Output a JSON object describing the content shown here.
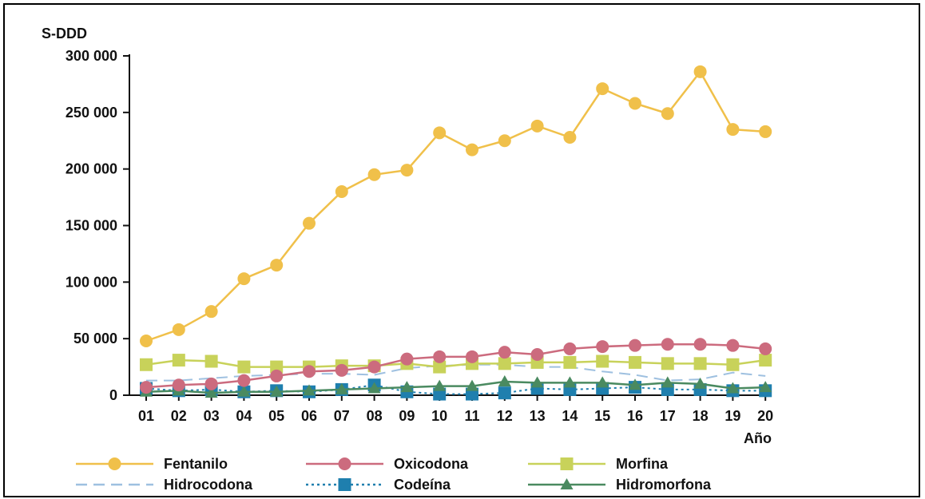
{
  "chart_data": {
    "type": "line",
    "ylabel": "S-DDD",
    "xlabel": "Año",
    "ylim": [
      0,
      300000
    ],
    "yticks": [
      0,
      50000,
      100000,
      150000,
      200000,
      250000,
      300000
    ],
    "ytick_labels": [
      "0",
      "50 000",
      "100 000",
      "150 000",
      "200 000",
      "250 000",
      "300 000"
    ],
    "categories": [
      "01",
      "02",
      "03",
      "04",
      "05",
      "06",
      "07",
      "08",
      "09",
      "10",
      "11",
      "12",
      "13",
      "14",
      "15",
      "16",
      "17",
      "18",
      "19",
      "20"
    ],
    "legend_position": "bottom",
    "series": [
      {
        "name": "Fentanilo",
        "color": "#f0c04a",
        "marker": "circle",
        "dash": "solid",
        "values": [
          48000,
          58000,
          74000,
          103000,
          115000,
          152000,
          180000,
          195000,
          199000,
          232000,
          217000,
          225000,
          238000,
          228000,
          271000,
          258000,
          249000,
          286000,
          235000,
          233000
        ]
      },
      {
        "name": "Oxicodona",
        "color": "#cc6b7e",
        "marker": "circle",
        "dash": "solid",
        "values": [
          7000,
          9000,
          10000,
          13000,
          17000,
          21000,
          22000,
          25000,
          32000,
          34000,
          34000,
          38000,
          36000,
          41000,
          43000,
          44000,
          45000,
          45000,
          44000,
          41000
        ]
      },
      {
        "name": "Morfina",
        "color": "#c8d25a",
        "marker": "square",
        "dash": "solid",
        "values": [
          27000,
          31000,
          30000,
          25000,
          25000,
          25000,
          26000,
          26000,
          28000,
          25000,
          28000,
          28000,
          29000,
          29000,
          30000,
          29000,
          28000,
          28000,
          27000,
          31000
        ]
      },
      {
        "name": "Hidrocodona",
        "color": "#9ec0e0",
        "marker": "none",
        "dash": "dashed",
        "values": [
          13000,
          13000,
          15000,
          17000,
          18000,
          19000,
          19000,
          18000,
          24000,
          26000,
          27000,
          27000,
          25000,
          25000,
          21000,
          18000,
          13000,
          14000,
          20000,
          17000
        ]
      },
      {
        "name": "Codeína",
        "color": "#1f7fae",
        "marker": "square",
        "dash": "dotted",
        "values": [
          6000,
          4000,
          5000,
          3000,
          4000,
          3000,
          5000,
          9000,
          3000,
          1000,
          1000,
          2000,
          6000,
          5000,
          6000,
          7000,
          5000,
          5000,
          4000,
          4000
        ]
      },
      {
        "name": "Hidromorfona",
        "color": "#4a8a60",
        "marker": "triangle",
        "dash": "solid",
        "values": [
          3000,
          4000,
          2000,
          3000,
          3000,
          4000,
          5000,
          6000,
          7000,
          8000,
          8000,
          12000,
          11000,
          11000,
          11000,
          9000,
          11000,
          10000,
          6000,
          7000
        ]
      }
    ]
  }
}
